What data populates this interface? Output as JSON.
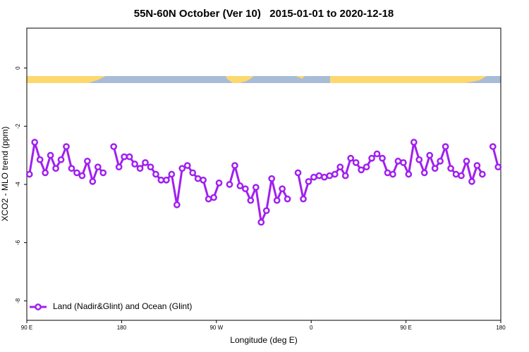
{
  "chart_data": {
    "type": "line",
    "title": "55N-60N October (Ver 10)   2015-01-01 to 2020-12-18",
    "xlabel": "Longitude (deg E)",
    "ylabel": "XCO2 - MLO trend (ppm)",
    "xlim": [
      90,
      540
    ],
    "xticks": [
      {
        "value": 90,
        "label": "90 E"
      },
      {
        "value": 180,
        "label": "180"
      },
      {
        "value": 270,
        "label": "90 W"
      },
      {
        "value": 360,
        "label": "0"
      },
      {
        "value": 450,
        "label": "90 E"
      },
      {
        "value": 540,
        "label": "180"
      }
    ],
    "ylim": [
      -8.67,
      1.37
    ],
    "yticks": [
      -8,
      -6,
      -4,
      -2,
      0
    ],
    "legend": "bottomleft",
    "x": [
      92.5,
      97.5,
      102.5,
      107.5,
      112.5,
      117.5,
      122.5,
      127.5,
      132.5,
      137.5,
      142.5,
      147.5,
      152.5,
      157.5,
      162.5,
      167.5,
      172.5,
      177.5,
      182.5,
      187.5,
      192.5,
      197.5,
      202.5,
      207.5,
      212.5,
      217.5,
      222.5,
      227.5,
      232.5,
      237.5,
      242.5,
      247.5,
      252.5,
      257.5,
      262.5,
      267.5,
      272.5,
      277.5,
      282.5,
      287.5,
      292.5,
      297.5,
      302.5,
      307.5,
      312.5,
      317.5,
      322.5,
      327.5,
      332.5,
      337.5,
      342.5,
      347.5,
      352.5,
      357.5,
      362.5,
      367.5,
      372.5,
      377.5,
      382.5,
      387.5,
      392.5,
      397.5,
      402.5,
      407.5,
      412.5,
      417.5,
      422.5,
      427.5,
      432.5,
      437.5,
      442.5,
      447.5,
      452.5,
      457.5,
      462.5,
      467.5,
      472.5,
      477.5,
      482.5,
      487.5,
      492.5,
      497.5,
      502.5,
      507.5,
      512.5,
      517.5,
      522.5,
      527.5,
      532.5,
      537.5
    ],
    "series": [
      {
        "name": "Land (Nadir&Glint) and Ocean (Glint)",
        "color": "#a020f0",
        "values": [
          -3.65,
          -2.55,
          -3.15,
          -3.6,
          -3.0,
          -3.45,
          -3.15,
          -2.7,
          -3.45,
          -3.6,
          -3.7,
          -3.2,
          -3.9,
          -3.4,
          -3.6,
          null,
          -2.7,
          -3.4,
          -3.05,
          -3.05,
          -3.3,
          -3.45,
          -3.25,
          -3.4,
          -3.65,
          -3.85,
          -3.85,
          -3.65,
          -4.7,
          -3.45,
          -3.35,
          -3.6,
          -3.8,
          -3.85,
          -4.5,
          -4.45,
          -3.95,
          null,
          -4.0,
          -3.35,
          -4.05,
          -4.15,
          -4.55,
          -4.1,
          -5.3,
          -4.9,
          -3.8,
          -4.55,
          -4.15,
          -4.5,
          null,
          -3.6,
          -4.5,
          -3.9,
          -3.75,
          -3.7,
          -3.75,
          -3.7,
          -3.65,
          -3.4,
          -3.7,
          -3.1,
          -3.25,
          -3.5,
          -3.4,
          -3.1,
          -2.95,
          -3.1,
          -3.6,
          -3.65,
          -3.2,
          -3.25,
          -3.65,
          -2.55,
          -3.15,
          -3.6,
          -3.0,
          -3.45,
          -3.2,
          -2.7,
          -3.45,
          -3.65,
          -3.7,
          -3.2,
          -3.9,
          -3.35,
          -3.65,
          null,
          -2.7,
          -3.4
        ]
      }
    ]
  }
}
